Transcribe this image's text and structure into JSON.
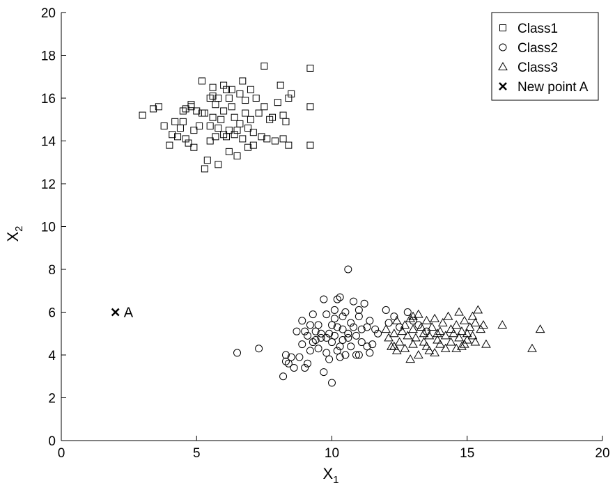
{
  "chart_data": {
    "type": "scatter",
    "title": "",
    "xlabel": {
      "main": "X",
      "sub": "1"
    },
    "ylabel": {
      "main": "X",
      "sub": "2"
    },
    "xlim": [
      0,
      20
    ],
    "ylim": [
      0,
      20
    ],
    "xticks": [
      0,
      5,
      10,
      15,
      20
    ],
    "yticks": [
      0,
      2,
      4,
      6,
      8,
      10,
      12,
      14,
      16,
      18,
      20
    ],
    "grid": false,
    "legend_position": "top-right",
    "series": [
      {
        "name": "Class1",
        "marker": "square",
        "points": [
          [
            3.0,
            15.2
          ],
          [
            3.4,
            15.5
          ],
          [
            3.6,
            15.6
          ],
          [
            3.8,
            14.7
          ],
          [
            4.0,
            13.8
          ],
          [
            4.1,
            14.3
          ],
          [
            4.2,
            14.9
          ],
          [
            4.3,
            14.2
          ],
          [
            4.4,
            14.6
          ],
          [
            4.5,
            15.4
          ],
          [
            4.5,
            14.9
          ],
          [
            4.6,
            15.5
          ],
          [
            4.6,
            14.1
          ],
          [
            4.7,
            13.9
          ],
          [
            4.8,
            15.6
          ],
          [
            4.8,
            15.7
          ],
          [
            4.9,
            13.7
          ],
          [
            4.9,
            14.5
          ],
          [
            5.0,
            15.4
          ],
          [
            5.1,
            14.7
          ],
          [
            5.2,
            15.3
          ],
          [
            5.2,
            16.8
          ],
          [
            5.3,
            15.3
          ],
          [
            5.3,
            12.7
          ],
          [
            5.4,
            13.1
          ],
          [
            5.5,
            14.0
          ],
          [
            5.5,
            14.7
          ],
          [
            5.5,
            16.0
          ],
          [
            5.6,
            15.1
          ],
          [
            5.6,
            16.5
          ],
          [
            5.6,
            16.1
          ],
          [
            5.7,
            15.7
          ],
          [
            5.7,
            14.2
          ],
          [
            5.8,
            12.9
          ],
          [
            5.8,
            14.6
          ],
          [
            5.8,
            16.0
          ],
          [
            5.9,
            15.0
          ],
          [
            6.0,
            16.6
          ],
          [
            6.0,
            14.3
          ],
          [
            6.0,
            15.4
          ],
          [
            6.1,
            16.4
          ],
          [
            6.1,
            14.2
          ],
          [
            6.2,
            16.0
          ],
          [
            6.2,
            13.5
          ],
          [
            6.2,
            14.5
          ],
          [
            6.3,
            15.6
          ],
          [
            6.3,
            16.4
          ],
          [
            6.4,
            14.3
          ],
          [
            6.4,
            15.1
          ],
          [
            6.5,
            13.3
          ],
          [
            6.5,
            14.5
          ],
          [
            6.6,
            16.2
          ],
          [
            6.6,
            14.8
          ],
          [
            6.7,
            16.8
          ],
          [
            6.7,
            14.1
          ],
          [
            6.8,
            15.3
          ],
          [
            6.8,
            15.9
          ],
          [
            6.9,
            13.7
          ],
          [
            6.9,
            14.6
          ],
          [
            7.0,
            16.4
          ],
          [
            7.0,
            15.0
          ],
          [
            7.1,
            13.8
          ],
          [
            7.1,
            14.4
          ],
          [
            7.2,
            16.0
          ],
          [
            7.3,
            15.3
          ],
          [
            7.4,
            14.2
          ],
          [
            7.5,
            17.5
          ],
          [
            7.5,
            15.6
          ],
          [
            7.6,
            14.1
          ],
          [
            7.7,
            15.0
          ],
          [
            7.8,
            15.1
          ],
          [
            7.9,
            14.0
          ],
          [
            8.0,
            15.8
          ],
          [
            8.1,
            16.6
          ],
          [
            8.2,
            14.1
          ],
          [
            8.2,
            15.2
          ],
          [
            8.3,
            14.9
          ],
          [
            8.4,
            16.0
          ],
          [
            8.4,
            13.8
          ],
          [
            8.5,
            16.2
          ],
          [
            9.2,
            17.4
          ],
          [
            9.2,
            15.6
          ],
          [
            9.2,
            13.8
          ]
        ]
      },
      {
        "name": "Class2",
        "marker": "circle",
        "points": [
          [
            6.5,
            4.1
          ],
          [
            7.3,
            4.3
          ],
          [
            8.2,
            3.0
          ],
          [
            8.3,
            3.7
          ],
          [
            8.3,
            4.0
          ],
          [
            8.4,
            3.6
          ],
          [
            8.5,
            3.9
          ],
          [
            8.7,
            5.1
          ],
          [
            8.8,
            3.9
          ],
          [
            8.9,
            5.6
          ],
          [
            8.9,
            4.5
          ],
          [
            9.0,
            3.4
          ],
          [
            9.0,
            5.1
          ],
          [
            9.1,
            3.6
          ],
          [
            9.1,
            4.9
          ],
          [
            9.2,
            4.2
          ],
          [
            9.2,
            5.4
          ],
          [
            9.3,
            5.9
          ],
          [
            9.3,
            4.6
          ],
          [
            9.4,
            5.1
          ],
          [
            9.5,
            5.4
          ],
          [
            9.5,
            4.3
          ],
          [
            9.6,
            5.0
          ],
          [
            9.6,
            4.8
          ],
          [
            9.7,
            6.6
          ],
          [
            9.7,
            3.2
          ],
          [
            9.8,
            5.9
          ],
          [
            9.8,
            4.8
          ],
          [
            9.9,
            5.0
          ],
          [
            9.9,
            3.8
          ],
          [
            10.0,
            5.4
          ],
          [
            10.0,
            4.6
          ],
          [
            10.0,
            2.7
          ],
          [
            10.1,
            5.7
          ],
          [
            10.1,
            6.1
          ],
          [
            10.1,
            4.9
          ],
          [
            10.2,
            4.2
          ],
          [
            10.2,
            5.3
          ],
          [
            10.2,
            6.6
          ],
          [
            10.3,
            6.7
          ],
          [
            10.3,
            3.9
          ],
          [
            10.3,
            4.4
          ],
          [
            10.4,
            5.2
          ],
          [
            10.4,
            5.8
          ],
          [
            10.4,
            4.7
          ],
          [
            10.5,
            6.0
          ],
          [
            10.5,
            4.0
          ],
          [
            10.6,
            8.0
          ],
          [
            10.6,
            5.0
          ],
          [
            10.7,
            5.5
          ],
          [
            10.7,
            4.4
          ],
          [
            10.8,
            5.3
          ],
          [
            10.8,
            6.5
          ],
          [
            10.9,
            4.0
          ],
          [
            10.9,
            4.9
          ],
          [
            11.0,
            5.8
          ],
          [
            11.0,
            6.1
          ],
          [
            11.1,
            4.6
          ],
          [
            11.1,
            5.2
          ],
          [
            11.2,
            6.4
          ],
          [
            11.3,
            5.3
          ],
          [
            11.3,
            4.4
          ],
          [
            11.4,
            5.6
          ],
          [
            11.4,
            4.1
          ],
          [
            11.5,
            4.5
          ],
          [
            11.6,
            5.2
          ],
          [
            11.7,
            5.0
          ],
          [
            12.0,
            6.1
          ],
          [
            12.1,
            5.5
          ],
          [
            12.3,
            5.8
          ],
          [
            12.5,
            5.3
          ],
          [
            12.8,
            6.0
          ],
          [
            13.0,
            5.6
          ],
          [
            13.2,
            5.4
          ],
          [
            13.5,
            5.1
          ],
          [
            8.6,
            3.4
          ],
          [
            9.4,
            4.7
          ],
          [
            9.8,
            4.1
          ],
          [
            10.6,
            4.8
          ],
          [
            11.0,
            4.0
          ]
        ]
      },
      {
        "name": "Class3",
        "marker": "triangle",
        "points": [
          [
            12.0,
            5.2
          ],
          [
            12.1,
            4.8
          ],
          [
            12.2,
            4.4
          ],
          [
            12.3,
            5.0
          ],
          [
            12.4,
            4.2
          ],
          [
            12.4,
            5.6
          ],
          [
            12.5,
            4.6
          ],
          [
            12.6,
            5.1
          ],
          [
            12.7,
            4.3
          ],
          [
            12.7,
            5.4
          ],
          [
            12.8,
            4.9
          ],
          [
            12.9,
            5.7
          ],
          [
            12.9,
            3.8
          ],
          [
            13.0,
            4.5
          ],
          [
            13.0,
            5.2
          ],
          [
            13.1,
            4.8
          ],
          [
            13.2,
            5.9
          ],
          [
            13.2,
            4.0
          ],
          [
            13.3,
            5.3
          ],
          [
            13.4,
            4.6
          ],
          [
            13.4,
            5.0
          ],
          [
            13.5,
            4.4
          ],
          [
            13.5,
            5.6
          ],
          [
            13.6,
            4.9
          ],
          [
            13.7,
            5.3
          ],
          [
            13.8,
            4.1
          ],
          [
            13.8,
            5.7
          ],
          [
            13.9,
            4.7
          ],
          [
            14.0,
            5.1
          ],
          [
            14.0,
            4.5
          ],
          [
            14.1,
            5.5
          ],
          [
            14.2,
            4.9
          ],
          [
            14.2,
            4.3
          ],
          [
            14.3,
            5.8
          ],
          [
            14.4,
            5.2
          ],
          [
            14.4,
            4.6
          ],
          [
            14.5,
            5.0
          ],
          [
            14.6,
            5.4
          ],
          [
            14.6,
            4.3
          ],
          [
            14.7,
            6.0
          ],
          [
            14.7,
            4.8
          ],
          [
            14.8,
            5.1
          ],
          [
            14.9,
            4.5
          ],
          [
            14.9,
            5.6
          ],
          [
            15.0,
            5.0
          ],
          [
            15.0,
            4.7
          ],
          [
            15.1,
            5.3
          ],
          [
            15.2,
            4.9
          ],
          [
            15.3,
            5.5
          ],
          [
            15.3,
            4.6
          ],
          [
            15.4,
            6.1
          ],
          [
            15.5,
            5.2
          ],
          [
            15.6,
            5.4
          ],
          [
            15.7,
            4.5
          ],
          [
            16.3,
            5.4
          ],
          [
            17.4,
            4.3
          ],
          [
            17.7,
            5.2
          ],
          [
            13.0,
            5.8
          ],
          [
            13.6,
            4.2
          ],
          [
            14.8,
            4.4
          ],
          [
            15.2,
            5.8
          ],
          [
            12.3,
            4.4
          ],
          [
            13.9,
            5.0
          ]
        ]
      },
      {
        "name": "New point A",
        "marker": "x",
        "points": [
          [
            2.0,
            6.0
          ]
        ]
      }
    ],
    "annotations": [
      {
        "text": "A",
        "x": 2.0,
        "y": 6.0
      }
    ]
  }
}
